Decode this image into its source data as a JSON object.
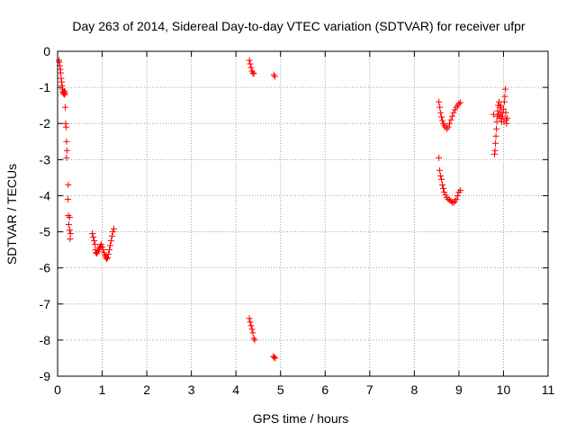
{
  "chart_data": {
    "type": "scatter",
    "title": "Day 263 of 2014, Sidereal Day-to-day VTEC variation (SDTVAR) for receiver ufpr",
    "xlabel": "GPS time / hours",
    "ylabel": "SDTVAR / TECUs",
    "xlim": [
      0,
      11
    ],
    "ylim": [
      -9,
      0
    ],
    "xticks": [
      0,
      1,
      2,
      3,
      4,
      5,
      6,
      7,
      8,
      9,
      10,
      11
    ],
    "yticks": [
      0,
      -1,
      -2,
      -3,
      -4,
      -5,
      -6,
      -7,
      -8,
      -9
    ],
    "grid": true,
    "marker": "+",
    "color": "#ff0000",
    "series": [
      {
        "name": "SDTVAR",
        "points": [
          [
            0.03,
            -0.25
          ],
          [
            0.04,
            -0.3
          ],
          [
            0.05,
            -0.4
          ],
          [
            0.06,
            -0.5
          ],
          [
            0.07,
            -0.6
          ],
          [
            0.08,
            -0.75
          ],
          [
            0.09,
            -0.85
          ],
          [
            0.1,
            -0.95
          ],
          [
            0.11,
            -1.05
          ],
          [
            0.12,
            -1.12
          ],
          [
            0.13,
            -1.15
          ],
          [
            0.14,
            -1.18
          ],
          [
            0.15,
            -1.1
          ],
          [
            0.16,
            -1.2
          ],
          [
            0.17,
            -1.15
          ],
          [
            0.17,
            -1.55
          ],
          [
            0.18,
            -2.0
          ],
          [
            0.19,
            -2.1
          ],
          [
            0.2,
            -2.5
          ],
          [
            0.21,
            -2.75
          ],
          [
            0.2,
            -2.95
          ],
          [
            0.24,
            -3.7
          ],
          [
            0.23,
            -4.1
          ],
          [
            0.24,
            -4.55
          ],
          [
            0.27,
            -4.6
          ],
          [
            0.25,
            -4.8
          ],
          [
            0.27,
            -4.95
          ],
          [
            0.29,
            -5.05
          ],
          [
            0.28,
            -5.2
          ],
          [
            0.78,
            -5.05
          ],
          [
            0.8,
            -5.15
          ],
          [
            0.82,
            -5.25
          ],
          [
            0.84,
            -5.35
          ],
          [
            0.85,
            -5.5
          ],
          [
            0.86,
            -5.58
          ],
          [
            0.88,
            -5.6
          ],
          [
            0.9,
            -5.55
          ],
          [
            0.92,
            -5.5
          ],
          [
            0.94,
            -5.45
          ],
          [
            0.96,
            -5.4
          ],
          [
            0.98,
            -5.35
          ],
          [
            1.0,
            -5.42
          ],
          [
            1.02,
            -5.5
          ],
          [
            1.04,
            -5.58
          ],
          [
            1.06,
            -5.65
          ],
          [
            1.08,
            -5.7
          ],
          [
            1.1,
            -5.75
          ],
          [
            1.12,
            -5.72
          ],
          [
            1.14,
            -5.62
          ],
          [
            1.16,
            -5.5
          ],
          [
            1.18,
            -5.38
          ],
          [
            1.2,
            -5.25
          ],
          [
            1.22,
            -5.12
          ],
          [
            1.24,
            -5.0
          ],
          [
            1.26,
            -4.92
          ],
          [
            4.3,
            -0.25
          ],
          [
            4.32,
            -0.35
          ],
          [
            4.34,
            -0.45
          ],
          [
            4.36,
            -0.55
          ],
          [
            4.38,
            -0.6
          ],
          [
            4.4,
            -0.62
          ],
          [
            4.85,
            -0.65
          ],
          [
            4.87,
            -0.7
          ],
          [
            4.3,
            -7.4
          ],
          [
            4.32,
            -7.5
          ],
          [
            4.34,
            -7.6
          ],
          [
            4.36,
            -7.7
          ],
          [
            4.38,
            -7.8
          ],
          [
            4.4,
            -7.95
          ],
          [
            4.42,
            -8.0
          ],
          [
            4.84,
            -8.45
          ],
          [
            4.86,
            -8.48
          ],
          [
            4.88,
            -8.5
          ],
          [
            8.55,
            -1.4
          ],
          [
            8.57,
            -1.55
          ],
          [
            8.59,
            -1.7
          ],
          [
            8.61,
            -1.82
          ],
          [
            8.63,
            -1.92
          ],
          [
            8.65,
            -2.0
          ],
          [
            8.67,
            -2.05
          ],
          [
            8.7,
            -2.1
          ],
          [
            8.73,
            -2.15
          ],
          [
            8.76,
            -2.1
          ],
          [
            8.79,
            -2.0
          ],
          [
            8.82,
            -1.9
          ],
          [
            8.85,
            -1.8
          ],
          [
            8.88,
            -1.7
          ],
          [
            8.91,
            -1.62
          ],
          [
            8.94,
            -1.55
          ],
          [
            8.97,
            -1.5
          ],
          [
            9.0,
            -1.45
          ],
          [
            9.03,
            -1.42
          ],
          [
            8.55,
            -2.95
          ],
          [
            8.57,
            -3.3
          ],
          [
            8.59,
            -3.45
          ],
          [
            8.61,
            -3.55
          ],
          [
            8.63,
            -3.7
          ],
          [
            8.65,
            -3.8
          ],
          [
            8.67,
            -3.9
          ],
          [
            8.7,
            -3.98
          ],
          [
            8.73,
            -4.05
          ],
          [
            8.76,
            -4.1
          ],
          [
            8.79,
            -4.12
          ],
          [
            8.82,
            -4.15
          ],
          [
            8.85,
            -4.18
          ],
          [
            8.88,
            -4.2
          ],
          [
            8.91,
            -4.15
          ],
          [
            8.94,
            -4.1
          ],
          [
            8.97,
            -4.0
          ],
          [
            9.0,
            -3.9
          ],
          [
            9.03,
            -3.85
          ],
          [
            9.78,
            -1.75
          ],
          [
            9.8,
            -2.85
          ],
          [
            9.81,
            -2.75
          ],
          [
            9.82,
            -2.55
          ],
          [
            9.83,
            -2.35
          ],
          [
            9.84,
            -2.15
          ],
          [
            9.85,
            -1.95
          ],
          [
            9.86,
            -1.8
          ],
          [
            9.87,
            -1.65
          ],
          [
            9.88,
            -1.5
          ],
          [
            9.9,
            -1.4
          ],
          [
            9.92,
            -1.55
          ],
          [
            9.93,
            -1.7
          ],
          [
            9.95,
            -1.85
          ],
          [
            9.96,
            -1.95
          ],
          [
            9.98,
            -1.8
          ],
          [
            10.0,
            -1.6
          ],
          [
            10.02,
            -1.4
          ],
          [
            10.03,
            -1.25
          ],
          [
            10.04,
            -1.05
          ],
          [
            10.05,
            -1.7
          ],
          [
            10.06,
            -1.9
          ],
          [
            10.07,
            -2.0
          ],
          [
            10.08,
            -1.85
          ],
          [
            9.89,
            -1.75
          ],
          [
            9.91,
            -1.85
          ],
          [
            9.94,
            -1.5
          ],
          [
            9.97,
            -1.7
          ],
          [
            10.01,
            -1.95
          ]
        ]
      }
    ]
  }
}
